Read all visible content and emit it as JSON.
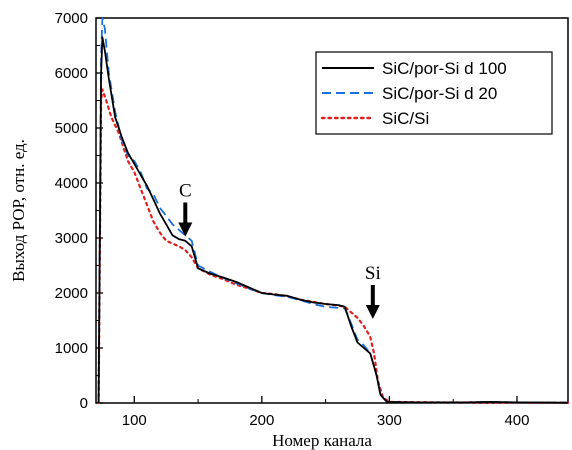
{
  "chart_data": {
    "type": "line",
    "xlabel": "Номер канала",
    "ylabel": "Выход РОР, отн. ед.",
    "xlim": [
      70,
      440
    ],
    "ylim": [
      0,
      7000
    ],
    "x_ticks": [
      100,
      200,
      300,
      400
    ],
    "y_ticks": [
      0,
      1000,
      2000,
      3000,
      4000,
      5000,
      6000,
      7000
    ],
    "grid": false,
    "legend_position": "top-right",
    "series": [
      {
        "name": "SiC/por-Si d 100",
        "color": "#000000",
        "style": "solid",
        "points": [
          [
            72,
            0
          ],
          [
            74,
            6000
          ],
          [
            75,
            6650
          ],
          [
            77,
            6400
          ],
          [
            80,
            5900
          ],
          [
            85,
            5200
          ],
          [
            90,
            4850
          ],
          [
            95,
            4550
          ],
          [
            100,
            4350
          ],
          [
            105,
            4150
          ],
          [
            110,
            3950
          ],
          [
            115,
            3700
          ],
          [
            120,
            3450
          ],
          [
            125,
            3250
          ],
          [
            130,
            3050
          ],
          [
            135,
            2980
          ],
          [
            140,
            2950
          ],
          [
            145,
            2850
          ],
          [
            150,
            2450
          ],
          [
            160,
            2350
          ],
          [
            170,
            2280
          ],
          [
            180,
            2200
          ],
          [
            190,
            2100
          ],
          [
            200,
            2000
          ],
          [
            210,
            1970
          ],
          [
            220,
            1950
          ],
          [
            230,
            1880
          ],
          [
            240,
            1830
          ],
          [
            250,
            1800
          ],
          [
            260,
            1780
          ],
          [
            265,
            1750
          ],
          [
            270,
            1400
          ],
          [
            275,
            1100
          ],
          [
            280,
            1000
          ],
          [
            285,
            900
          ],
          [
            290,
            500
          ],
          [
            293,
            150
          ],
          [
            298,
            20
          ],
          [
            320,
            10
          ],
          [
            360,
            10
          ],
          [
            380,
            20
          ],
          [
            400,
            10
          ],
          [
            440,
            5
          ]
        ]
      },
      {
        "name": "SiC/por-Si d 20",
        "color": "#1a6fe0",
        "style": "dashed",
        "points": [
          [
            72,
            0
          ],
          [
            74,
            6300
          ],
          [
            75,
            7000
          ],
          [
            77,
            6800
          ],
          [
            80,
            6000
          ],
          [
            85,
            5300
          ],
          [
            90,
            4800
          ],
          [
            95,
            4500
          ],
          [
            100,
            4400
          ],
          [
            105,
            4200
          ],
          [
            110,
            3900
          ],
          [
            115,
            3800
          ],
          [
            120,
            3550
          ],
          [
            125,
            3400
          ],
          [
            130,
            3250
          ],
          [
            135,
            3150
          ],
          [
            140,
            3050
          ],
          [
            145,
            2950
          ],
          [
            150,
            2500
          ],
          [
            160,
            2380
          ],
          [
            170,
            2270
          ],
          [
            180,
            2180
          ],
          [
            190,
            2080
          ],
          [
            200,
            2000
          ],
          [
            210,
            1960
          ],
          [
            220,
            1930
          ],
          [
            230,
            1870
          ],
          [
            240,
            1800
          ],
          [
            250,
            1750
          ],
          [
            260,
            1730
          ],
          [
            265,
            1720
          ],
          [
            270,
            1450
          ],
          [
            275,
            1150
          ],
          [
            280,
            1050
          ],
          [
            285,
            900
          ],
          [
            290,
            500
          ],
          [
            293,
            150
          ],
          [
            298,
            20
          ],
          [
            320,
            10
          ],
          [
            360,
            10
          ],
          [
            380,
            20
          ],
          [
            400,
            10
          ],
          [
            440,
            5
          ]
        ]
      },
      {
        "name": "SiC/Si",
        "color": "#e02020",
        "style": "dotted",
        "points": [
          [
            72,
            0
          ],
          [
            74,
            5500
          ],
          [
            75,
            5700
          ],
          [
            78,
            5500
          ],
          [
            82,
            5200
          ],
          [
            88,
            4900
          ],
          [
            95,
            4400
          ],
          [
            100,
            4200
          ],
          [
            105,
            3900
          ],
          [
            110,
            3600
          ],
          [
            115,
            3300
          ],
          [
            120,
            3100
          ],
          [
            125,
            2950
          ],
          [
            130,
            2900
          ],
          [
            135,
            2850
          ],
          [
            140,
            2780
          ],
          [
            145,
            2650
          ],
          [
            150,
            2450
          ],
          [
            160,
            2330
          ],
          [
            170,
            2250
          ],
          [
            180,
            2150
          ],
          [
            190,
            2080
          ],
          [
            200,
            2000
          ],
          [
            210,
            1980
          ],
          [
            220,
            1940
          ],
          [
            230,
            1880
          ],
          [
            240,
            1840
          ],
          [
            250,
            1800
          ],
          [
            260,
            1770
          ],
          [
            265,
            1750
          ],
          [
            270,
            1650
          ],
          [
            275,
            1550
          ],
          [
            280,
            1400
          ],
          [
            285,
            1200
          ],
          [
            288,
            900
          ],
          [
            291,
            400
          ],
          [
            295,
            100
          ],
          [
            300,
            20
          ],
          [
            340,
            10
          ],
          [
            440,
            5
          ]
        ]
      }
    ],
    "annotations": [
      {
        "text": "C",
        "x": 140,
        "y": 3100,
        "direction": "down-arrow"
      },
      {
        "text": "Si",
        "x": 287,
        "y": 1600,
        "direction": "down-arrow"
      }
    ]
  }
}
